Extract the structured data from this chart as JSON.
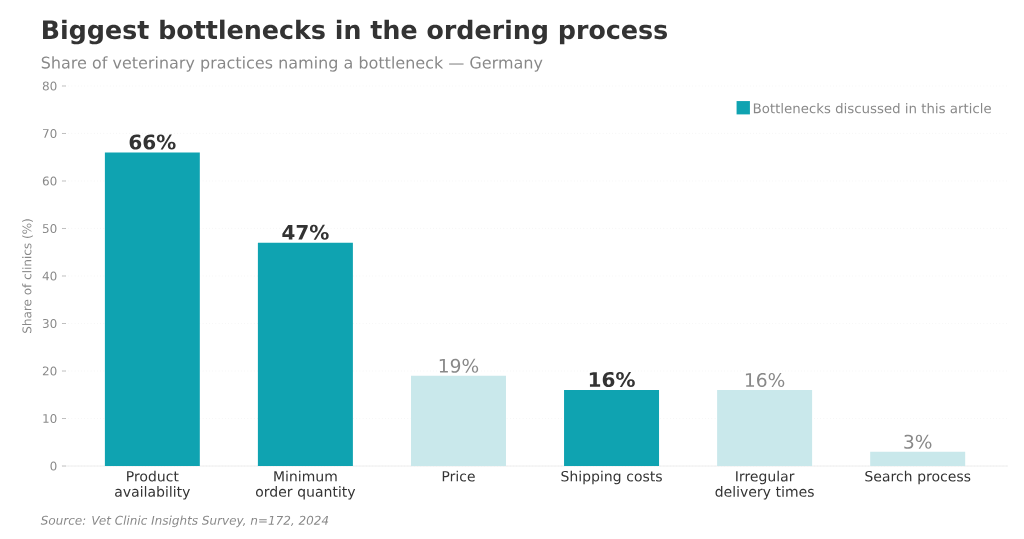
{
  "chart_data": {
    "type": "bar",
    "title": "Biggest bottlenecks in the ordering process",
    "subtitle": "Share of veterinary practices naming a bottleneck — Germany",
    "ylabel": "Share of clinics (%)",
    "categories": [
      "Product availability",
      "Minimum order quantity",
      "Price",
      "Shipping costs",
      "Irregular delivery times",
      "Search process"
    ],
    "series": [
      {
        "name": "Bottlenecks discussed in this article",
        "color": "#0fa3b1",
        "values": [
          66,
          47,
          null,
          16,
          null,
          null
        ],
        "value_labels": [
          "66%",
          "47%",
          null,
          "16%",
          null,
          null
        ]
      },
      {
        "color": "#c9e8eb",
        "values": [
          null,
          null,
          19,
          null,
          16,
          3
        ],
        "value_labels": [
          null,
          null,
          "19%",
          null,
          "16%",
          "3%"
        ]
      }
    ],
    "ylim": [
      0,
      80
    ],
    "yticks": [
      0,
      10,
      20,
      30,
      40,
      50,
      60,
      70,
      80
    ],
    "grid": "y",
    "legend": "top right",
    "annotations": [
      "Source: Vet Clinic Insights Survey, n=172, 2024"
    ]
  }
}
